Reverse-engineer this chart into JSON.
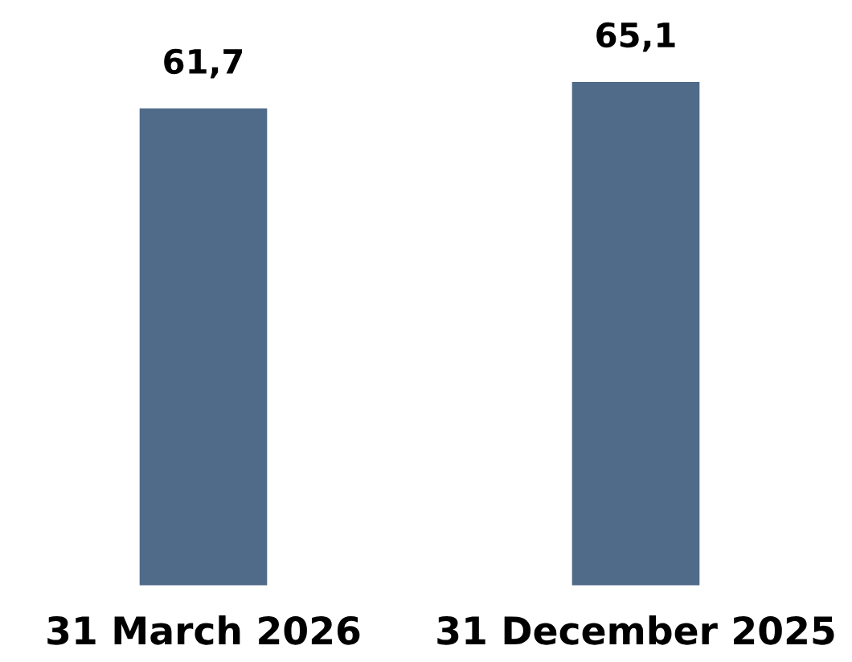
{
  "chart_data": {
    "type": "bar",
    "categories": [
      "31 March 2026",
      "31 December 2025"
    ],
    "values": [
      61.7,
      65.1
    ],
    "color": "#506a89",
    "value_labels": [
      "61,7",
      "65,1"
    ]
  }
}
